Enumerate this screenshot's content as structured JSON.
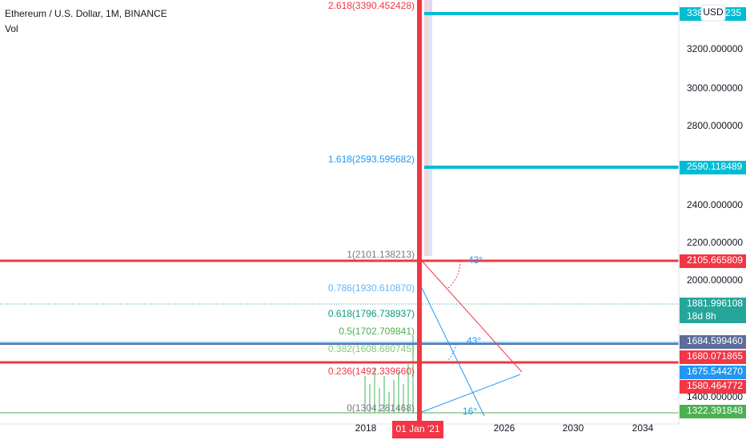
{
  "header": {
    "title": "Ethereum / U.S. Dollar, 1M, BINANCE",
    "indicator": "Vol"
  },
  "price_axis": {
    "currency": "USD",
    "ticks": [
      "3200.000000",
      "3000.000000",
      "2800.000000",
      "2400.000000",
      "2200.000000",
      "2000.000000",
      "1400.000000"
    ]
  },
  "price_tags": [
    {
      "label": "338",
      "suffix": "235"
    },
    {
      "label": "2590.118489"
    },
    {
      "label": "2105.665809"
    },
    {
      "label": "1881.996108",
      "countdown": "18d 8h"
    },
    {
      "label": "1684.599460"
    },
    {
      "label": "1680.071865"
    },
    {
      "label": "1675.544270"
    },
    {
      "label": "1580.464772"
    },
    {
      "label": "1322.391848"
    }
  ],
  "fib_levels": [
    "2.618(3390.452428)",
    "1.618(2593.595682)",
    "1(2101.138213)",
    "0.786(1930.610870)",
    "0.618(1796.738937)",
    "0.5(1702.709841)",
    "0.382(1608.680745)",
    "0.236(1492.339660)",
    "0(1304.281468)"
  ],
  "angles": [
    "43°",
    "43°",
    "16°"
  ],
  "time_axis": {
    "labels": [
      "2018",
      "2026",
      "2030",
      "2034"
    ],
    "cursor": "01 Jan '21"
  }
}
